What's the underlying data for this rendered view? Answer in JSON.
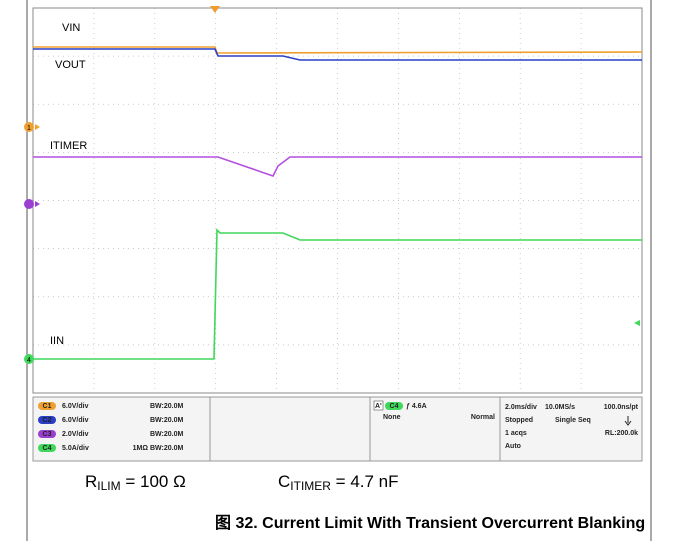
{
  "screen": {
    "trace_labels": [
      "VIN",
      "VOUT",
      "ITIMER",
      "IIN"
    ],
    "channel_markers": [
      "1",
      "4"
    ],
    "channels": [
      {
        "badge": "C1",
        "scale": "6.0V/div",
        "coupling": "",
        "bw": "BW:20.0M"
      },
      {
        "badge": "C2",
        "scale": "6.0V/div",
        "coupling": "",
        "bw": "BW:20.0M"
      },
      {
        "badge": "C3",
        "scale": "2.0V/div",
        "coupling": "",
        "bw": "BW:20.0M"
      },
      {
        "badge": "C4",
        "scale": "5.0A/div",
        "coupling": "1MΩ",
        "bw": "BW:20.0M"
      }
    ],
    "trigger": {
      "prefix": "A'",
      "badge": "C4",
      "level": "ƒ 4.6A",
      "mode_a": "None",
      "mode_b": "Normal"
    },
    "timebase": {
      "row1": [
        "2.0ms/div",
        "10.0MS/s",
        "100.0ns/pt"
      ],
      "row2": [
        "Stopped",
        "Single Seq"
      ],
      "row3": [
        "1 acqs",
        "RL:200.0k"
      ],
      "row4": "Auto"
    }
  },
  "formulas": [
    {
      "symbol": "R",
      "sub": "ILIM",
      "rest": " = 100 Ω"
    },
    {
      "symbol": "C",
      "sub": "ITIMER",
      "rest": " = 4.7 nF"
    }
  ],
  "caption": "图 32. Current Limit With Transient Overcurrent Blanking"
}
